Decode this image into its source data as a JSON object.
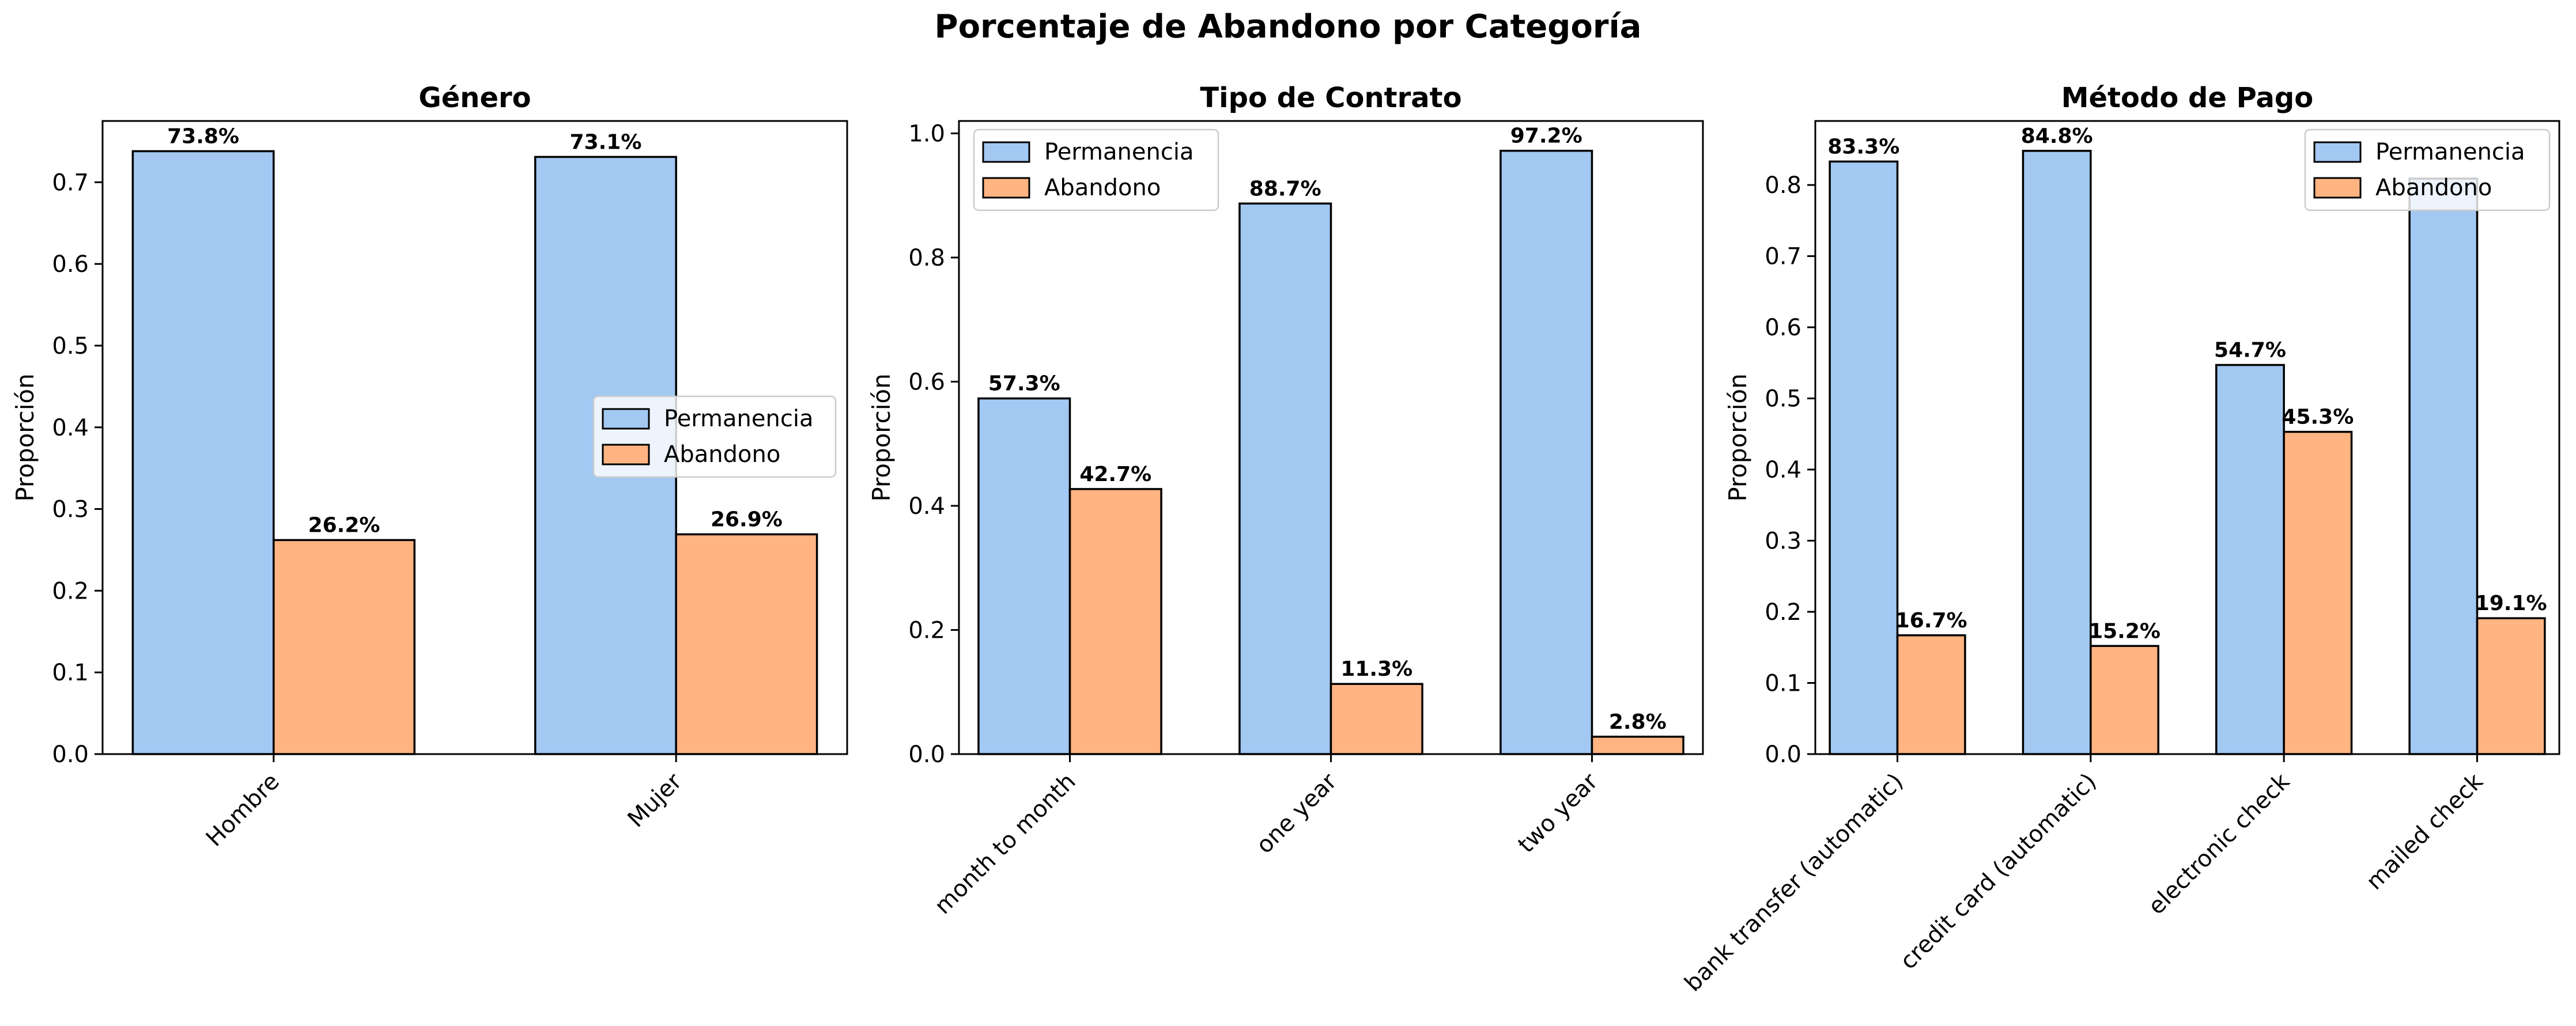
{
  "figure": {
    "title": "Porcentaje de Abandono por Categoría",
    "colors": {
      "permanencia": "#a3c8f2",
      "abandono": "#ffb482",
      "edge": "#000000"
    }
  },
  "chart_data": [
    {
      "type": "bar",
      "title": "Género",
      "xlabel": "",
      "ylabel": "Proporción",
      "ylim": [
        0,
        0.775
      ],
      "yticks": [
        "0.0",
        "0.1",
        "0.2",
        "0.3",
        "0.4",
        "0.5",
        "0.6",
        "0.7"
      ],
      "yticks_values": [
        0,
        0.1,
        0.2,
        0.3,
        0.4,
        0.5,
        0.6,
        0.7
      ],
      "categories": [
        "Hombre",
        "Mujer"
      ],
      "series": [
        {
          "name": "Permanencia",
          "values": [
            0.738,
            0.731
          ],
          "labels": [
            "73.8%",
            "73.1%"
          ]
        },
        {
          "name": "Abandono",
          "values": [
            0.262,
            0.269
          ],
          "labels": [
            "26.2%",
            "26.9%"
          ]
        }
      ],
      "legend": "center-right",
      "grid": false
    },
    {
      "type": "bar",
      "title": "Tipo de Contrato",
      "xlabel": "",
      "ylabel": "Proporción",
      "ylim": [
        0,
        1.02
      ],
      "yticks": [
        "0.0",
        "0.2",
        "0.4",
        "0.6",
        "0.8",
        "1.0"
      ],
      "yticks_values": [
        0,
        0.2,
        0.4,
        0.6,
        0.8,
        1.0
      ],
      "categories": [
        "month to month",
        "one year",
        "two year"
      ],
      "series": [
        {
          "name": "Permanencia",
          "values": [
            0.573,
            0.887,
            0.972
          ],
          "labels": [
            "57.3%",
            "88.7%",
            "97.2%"
          ]
        },
        {
          "name": "Abandono",
          "values": [
            0.427,
            0.113,
            0.028
          ],
          "labels": [
            "42.7%",
            "11.3%",
            "2.8%"
          ]
        }
      ],
      "legend": "top-left",
      "grid": false
    },
    {
      "type": "bar",
      "title": "Método de Pago",
      "xlabel": "",
      "ylabel": "Proporción",
      "ylim": [
        0,
        0.89
      ],
      "yticks": [
        "0.0",
        "0.1",
        "0.2",
        "0.3",
        "0.4",
        "0.5",
        "0.6",
        "0.7",
        "0.8"
      ],
      "yticks_values": [
        0,
        0.1,
        0.2,
        0.3,
        0.4,
        0.5,
        0.6,
        0.7,
        0.8
      ],
      "categories": [
        "bank transfer (automatic)",
        "credit card (automatic)",
        "electronic check",
        "mailed check"
      ],
      "series": [
        {
          "name": "Permanencia",
          "values": [
            0.833,
            0.848,
            0.547,
            0.809
          ],
          "labels": [
            "83.3%",
            "84.8%",
            "54.7%",
            ""
          ]
        },
        {
          "name": "Abandono",
          "values": [
            0.167,
            0.152,
            0.453,
            0.191
          ],
          "labels": [
            "16.7%",
            "15.2%",
            "45.3%",
            "19.1%"
          ]
        }
      ],
      "legend": "top-right",
      "grid": false
    }
  ]
}
